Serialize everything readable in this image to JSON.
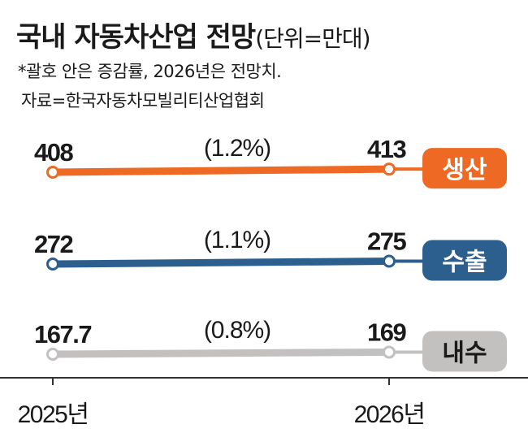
{
  "header": {
    "title": "국내 자동차산업 전망",
    "unit": "(단위=만대)",
    "note": "*괄호 안은 증감률, 2026년은 전망치.",
    "source": "자료=한국자동차모빌리티산업협회"
  },
  "colors": {
    "production": "#ee6a24",
    "export": "#2d5f8e",
    "domestic": "#c3c0c0",
    "axis": "#333333"
  },
  "chart_data": {
    "type": "line",
    "categories": [
      "2025년",
      "2026년"
    ],
    "series": [
      {
        "name": "생산",
        "values": [
          408,
          413
        ],
        "value_labels": [
          "408",
          "413"
        ],
        "change": "(1.2%)",
        "color": "#ee6a24"
      },
      {
        "name": "수출",
        "values": [
          272,
          275
        ],
        "value_labels": [
          "272",
          "275"
        ],
        "change": "(1.1%)",
        "color": "#2d5f8e"
      },
      {
        "name": "내수",
        "values": [
          167.7,
          169
        ],
        "value_labels": [
          "167.7",
          "169"
        ],
        "change": "(0.8%)",
        "color": "#c3c0c0"
      }
    ],
    "title": "국내 자동차산업 전망",
    "xlabel": "",
    "ylabel": ""
  }
}
